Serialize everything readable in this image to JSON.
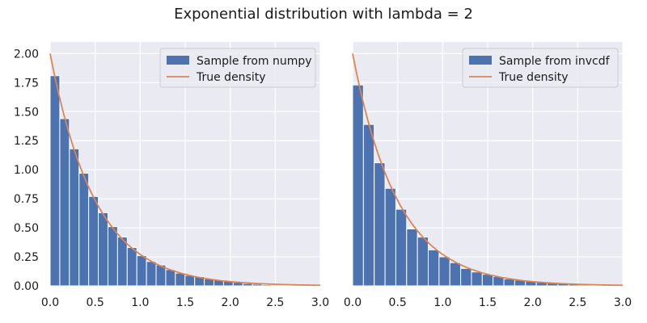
{
  "figure": {
    "suptitle": "Exponential distribution with lambda = 2",
    "colors": {
      "background": "#ffffff",
      "axes_face": "#eaeaf2",
      "grid": "#ffffff",
      "bar": "#4c72b0",
      "line": "#dd8452",
      "text": "#1a1a1a",
      "legend_face": "#eaeaf2",
      "legend_edge": "#cccccc"
    }
  },
  "chart_data": [
    {
      "type": "bar",
      "subtype": "histogram_with_density",
      "title": "",
      "xlabel": "",
      "ylabel": "",
      "xlim": [
        0.0,
        3.0
      ],
      "ylim": [
        0.0,
        2.1
      ],
      "xticks": [
        "0.0",
        "0.5",
        "1.0",
        "1.5",
        "2.0",
        "2.5",
        "3.0"
      ],
      "yticks": [
        "0.00",
        "0.25",
        "0.50",
        "0.75",
        "1.00",
        "1.25",
        "1.50",
        "1.75",
        "2.00"
      ],
      "grid": true,
      "legend_placement": "top-right",
      "bin_edges": [
        0.0,
        0.107,
        0.214,
        0.321,
        0.428,
        0.535,
        0.642,
        0.749,
        0.856,
        0.963,
        1.07,
        1.177,
        1.284,
        1.391,
        1.498,
        1.605,
        1.712,
        1.819,
        1.926,
        2.033,
        2.14,
        2.247,
        2.354,
        2.461,
        2.568,
        2.675,
        2.782,
        2.889
      ],
      "series": [
        {
          "name": "Sample from numpy",
          "kind": "histogram",
          "values": [
            1.81,
            1.44,
            1.18,
            0.97,
            0.77,
            0.63,
            0.51,
            0.42,
            0.33,
            0.26,
            0.21,
            0.18,
            0.14,
            0.11,
            0.09,
            0.08,
            0.06,
            0.05,
            0.04,
            0.03,
            0.02,
            0.015,
            0.01,
            0.008,
            0.006,
            0.004,
            0.002
          ]
        },
        {
          "name": "True density",
          "kind": "line",
          "function": "2*exp(-2x)",
          "x_range": [
            0.0,
            3.0
          ]
        }
      ]
    },
    {
      "type": "bar",
      "subtype": "histogram_with_density",
      "title": "",
      "xlabel": "",
      "ylabel": "",
      "xlim": [
        0.0,
        3.0
      ],
      "ylim": [
        0.0,
        2.1
      ],
      "xticks": [
        "0.0",
        "0.5",
        "1.0",
        "1.5",
        "2.0",
        "2.5",
        "3.0"
      ],
      "yticks": [],
      "grid": true,
      "legend_placement": "top-right",
      "bin_edges": [
        0.0,
        0.12,
        0.24,
        0.36,
        0.48,
        0.6,
        0.72,
        0.84,
        0.96,
        1.08,
        1.2,
        1.32,
        1.44,
        1.56,
        1.68,
        1.8,
        1.92,
        2.04,
        2.16,
        2.28,
        2.4,
        2.52,
        2.64,
        2.76,
        2.88,
        3.0
      ],
      "series": [
        {
          "name": "Sample from invcdf",
          "kind": "histogram",
          "values": [
            1.73,
            1.39,
            1.06,
            0.84,
            0.66,
            0.49,
            0.42,
            0.31,
            0.25,
            0.2,
            0.15,
            0.12,
            0.1,
            0.08,
            0.06,
            0.05,
            0.04,
            0.03,
            0.025,
            0.02,
            0.015,
            0.01,
            0.008,
            0.006,
            0.004
          ]
        },
        {
          "name": "True density",
          "kind": "line",
          "function": "2*exp(-2x)",
          "x_range": [
            0.0,
            3.0
          ]
        }
      ]
    }
  ]
}
